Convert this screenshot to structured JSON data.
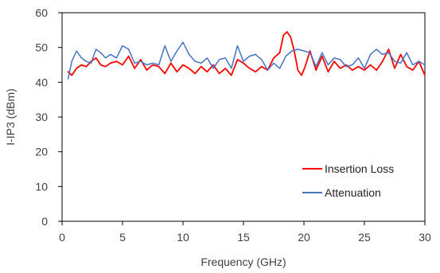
{
  "chart_data": {
    "type": "line",
    "xlabel": "Frequency (GHz)",
    "ylabel": "I-IP3 (dBm)",
    "xlim": [
      0,
      30
    ],
    "ylim": [
      0,
      60
    ],
    "xticks": [
      "0",
      "5",
      "10",
      "15",
      "20",
      "25",
      "30"
    ],
    "yticks": [
      "0",
      "10",
      "20",
      "30",
      "40",
      "50",
      "60"
    ],
    "grid": false,
    "legend": "bottom-right",
    "series": [
      {
        "name": "Insertion Loss",
        "color": "#ff0000",
        "x": [
          0.5,
          0.8,
          1.2,
          1.6,
          2.0,
          2.4,
          2.8,
          3.2,
          3.6,
          4.0,
          4.5,
          5.0,
          5.5,
          6.0,
          6.5,
          7.0,
          7.5,
          8.0,
          8.5,
          9.0,
          9.5,
          10.0,
          10.5,
          11.0,
          11.5,
          12.0,
          12.5,
          13.0,
          13.5,
          14.0,
          14.5,
          15.0,
          15.5,
          16.0,
          16.5,
          17.0,
          17.5,
          18.0,
          18.3,
          18.6,
          18.9,
          19.2,
          19.5,
          19.8,
          20.1,
          20.5,
          21.0,
          21.5,
          22.0,
          22.5,
          23.0,
          23.5,
          24.0,
          24.5,
          25.0,
          25.5,
          26.0,
          26.5,
          27.0,
          27.5,
          28.0,
          28.5,
          29.0,
          29.5,
          30.0
        ],
        "values": [
          43.0,
          42.0,
          44.0,
          45.0,
          44.5,
          46.0,
          47.0,
          45.0,
          44.5,
          45.5,
          46.0,
          45.0,
          47.5,
          44.0,
          46.5,
          43.5,
          45.0,
          44.5,
          42.5,
          45.5,
          43.0,
          45.0,
          44.0,
          42.5,
          44.5,
          43.0,
          45.0,
          42.5,
          44.0,
          42.0,
          46.5,
          45.5,
          44.0,
          43.0,
          44.5,
          43.5,
          47.0,
          48.5,
          53.5,
          54.5,
          53.0,
          49.0,
          43.5,
          42.0,
          44.5,
          49.0,
          43.5,
          47.5,
          43.0,
          46.0,
          44.0,
          45.0,
          43.5,
          44.5,
          43.5,
          45.0,
          43.5,
          46.0,
          49.5,
          44.0,
          48.0,
          44.5,
          43.5,
          46.0,
          42.0
        ]
      },
      {
        "name": "Attenuation",
        "color": "#4472c4",
        "x": [
          0.5,
          0.8,
          1.2,
          1.6,
          2.0,
          2.4,
          2.8,
          3.2,
          3.6,
          4.0,
          4.5,
          5.0,
          5.5,
          6.0,
          6.5,
          7.0,
          7.5,
          8.0,
          8.5,
          9.0,
          9.5,
          10.0,
          10.5,
          11.0,
          11.5,
          12.0,
          12.5,
          13.0,
          13.5,
          14.0,
          14.5,
          15.0,
          15.5,
          16.0,
          16.5,
          17.0,
          17.5,
          18.0,
          18.5,
          19.0,
          19.5,
          20.0,
          20.5,
          21.0,
          21.5,
          22.0,
          22.5,
          23.0,
          23.5,
          24.0,
          24.5,
          25.0,
          25.5,
          26.0,
          26.5,
          27.0,
          27.5,
          28.0,
          28.5,
          29.0,
          29.5,
          30.0
        ],
        "values": [
          41.0,
          46.0,
          49.0,
          47.0,
          46.0,
          45.5,
          49.5,
          48.5,
          47.0,
          48.0,
          47.0,
          50.5,
          49.5,
          45.5,
          46.0,
          45.0,
          45.5,
          45.0,
          50.5,
          46.0,
          49.0,
          51.5,
          48.0,
          46.0,
          45.5,
          47.0,
          44.0,
          46.5,
          47.0,
          44.0,
          50.5,
          46.0,
          47.5,
          48.0,
          46.5,
          43.5,
          45.5,
          44.0,
          47.5,
          49.0,
          49.5,
          49.0,
          48.5,
          44.5,
          48.5,
          45.0,
          47.0,
          46.5,
          44.5,
          45.0,
          47.0,
          44.0,
          48.0,
          49.5,
          48.0,
          48.5,
          46.0,
          45.5,
          48.5,
          45.0,
          46.0,
          45.0
        ]
      }
    ]
  }
}
